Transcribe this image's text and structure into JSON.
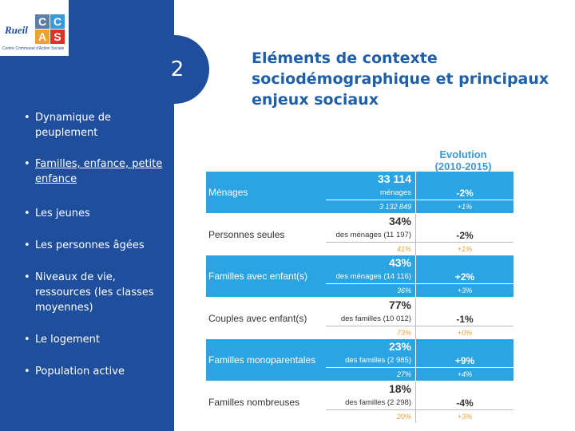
{
  "logo": {
    "town": "Rueil",
    "letters": [
      "C",
      "C",
      "A",
      "S"
    ],
    "caption": "Centre Communal d'Action Sociale"
  },
  "section_number": "2",
  "title": "Eléments de contexte sociodémographique et principaux enjeux sociaux",
  "menu": [
    "Dynamique de peuplement",
    "Familles, enfance, petite enfance",
    "Les jeunes",
    "Les personnes âgées",
    "Niveaux de vie, ressources (les classes moyennes)",
    "Le logement",
    "Population active"
  ],
  "table": {
    "header": [
      "Evolution",
      "(2010-2015)"
    ],
    "rows": [
      [
        "Ménages",
        "33 114",
        "ménages",
        "3 132 849",
        "-2%",
        "+1%"
      ],
      [
        "Personnes seules",
        "34%",
        "des ménages (11 197)",
        "41%",
        "-2%",
        "+1%"
      ],
      [
        "Familles avec enfant(s)",
        "43%",
        "des ménages (14 116)",
        "36%",
        "+2%",
        "+3%"
      ],
      [
        "Couples avec enfant(s)",
        "77%",
        "des familles (10 012)",
        "73%",
        "-1%",
        "+0%"
      ],
      [
        "Familles monoparentales",
        "23%",
        "des familles (2 985)",
        "27%",
        "+9%",
        "+4%"
      ],
      [
        "Familles nombreuses",
        "18%",
        "des familles (2 298)",
        "20%",
        "-4%",
        "+3%"
      ]
    ]
  }
}
